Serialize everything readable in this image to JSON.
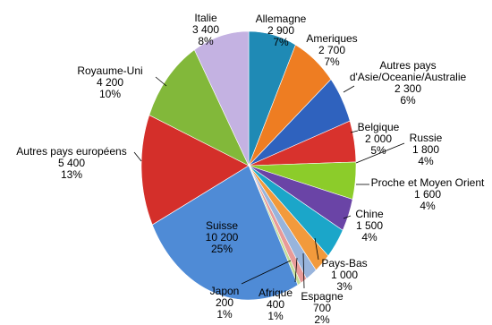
{
  "chart_data": {
    "type": "pie",
    "start": "12 o'clock",
    "direction": "clockwise",
    "title": "",
    "legend": "none",
    "slices": [
      {
        "name": "Allemagne",
        "value": "2 900",
        "pct": "7%",
        "color": "#1f8ab5"
      },
      {
        "name": "Ameriques",
        "value": "2 700",
        "pct": "7%",
        "color": "#ee7d22"
      },
      {
        "name": "Autres pays d'Asie/Oceanie/Australie",
        "value": "2 300",
        "pct": "6%",
        "color": "#2f62be"
      },
      {
        "name": "Belgique",
        "value": "2 000",
        "pct": "5%",
        "color": "#d8322d"
      },
      {
        "name": "Russie",
        "value": "1 800",
        "pct": "4%",
        "color": "#8ccc2a"
      },
      {
        "name": "Proche et Moyen Orient",
        "value": "1 600",
        "pct": "4%",
        "color": "#6a44a6"
      },
      {
        "name": "Chine",
        "value": "1 500",
        "pct": "4%",
        "color": "#1ba6c9"
      },
      {
        "name": "Pays-Bas",
        "value": "1 000",
        "pct": "3%",
        "color": "#f29a3c"
      },
      {
        "name": "Espagne",
        "value": "700",
        "pct": "2%",
        "color": "#98b4dc"
      },
      {
        "name": "Afrique",
        "value": "400",
        "pct": "1%",
        "color": "#e89a98"
      },
      {
        "name": "Japon",
        "value": "200",
        "pct": "1%",
        "color": "#c3dd96"
      },
      {
        "name": "Suisse",
        "value": "10 200",
        "pct": "25%",
        "color": "#4f8bd6"
      },
      {
        "name": "Autres pays européens",
        "value": "5 400",
        "pct": "13%",
        "color": "#d42f2a"
      },
      {
        "name": "Royaume-Uni",
        "value": "4 200",
        "pct": "10%",
        "color": "#82b83a"
      },
      {
        "name": "Italie",
        "value": "3 400",
        "pct": "8%",
        "color": "#c4b2e2"
      }
    ]
  }
}
